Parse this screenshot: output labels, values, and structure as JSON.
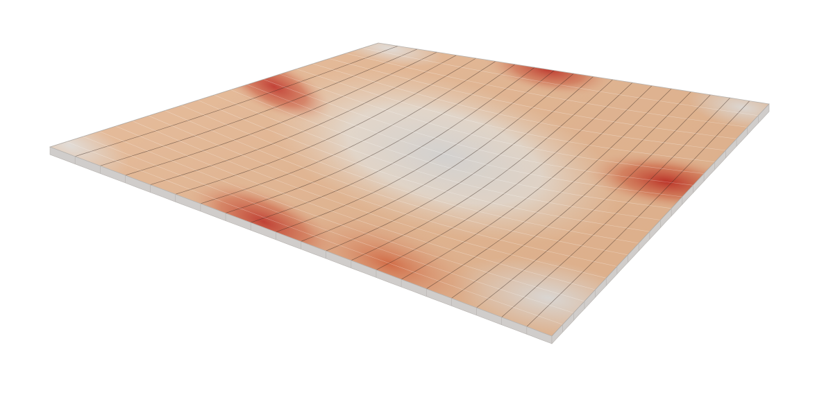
{
  "viewport": {
    "background_color": "#ffffff"
  },
  "colormap": {
    "low_color": "#e6e0da",
    "mid_color": "#ebb48c",
    "high_color": "#c2281e"
  },
  "plate": {
    "edge_color": "#d0cdcb",
    "edge_dark_color": "#b6b2ae",
    "mesh_line_color": "#3a2a22",
    "rows": 20,
    "cols": 20
  }
}
